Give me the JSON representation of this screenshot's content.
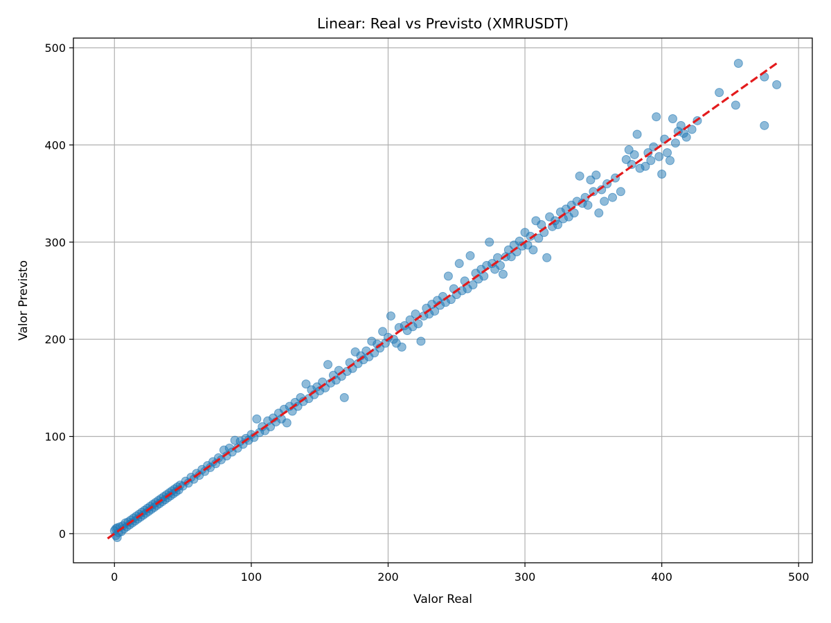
{
  "chart_data": {
    "type": "scatter",
    "title": "Linear: Real vs Previsto (XMRUSDT)",
    "xlabel": "Valor Real",
    "ylabel": "Valor Previsto",
    "xlim": [
      -30,
      510
    ],
    "ylim": [
      -30,
      510
    ],
    "xticks": [
      0,
      100,
      200,
      300,
      400,
      500
    ],
    "yticks": [
      0,
      100,
      200,
      300,
      400,
      500
    ],
    "grid": true,
    "colors": {
      "points": "#1f77b4",
      "reference_line": "#e31a1c",
      "grid": "#b0b0b0"
    },
    "reference_line": {
      "style": "dashed",
      "x": [
        -5,
        485
      ],
      "y": [
        -5,
        485
      ]
    },
    "series": [
      {
        "values_note": "",
        "points": [
          [
            0,
            3
          ],
          [
            1,
            -2
          ],
          [
            1,
            5
          ],
          [
            2,
            -4
          ],
          [
            2,
            6
          ],
          [
            3,
            1
          ],
          [
            4,
            7
          ],
          [
            5,
            2
          ],
          [
            6,
            8
          ],
          [
            7,
            5
          ],
          [
            8,
            11
          ],
          [
            9,
            7
          ],
          [
            10,
            12
          ],
          [
            11,
            9
          ],
          [
            12,
            14
          ],
          [
            13,
            11
          ],
          [
            14,
            16
          ],
          [
            15,
            13
          ],
          [
            16,
            18
          ],
          [
            17,
            15
          ],
          [
            18,
            20
          ],
          [
            19,
            17
          ],
          [
            20,
            22
          ],
          [
            21,
            19
          ],
          [
            22,
            24
          ],
          [
            23,
            21
          ],
          [
            24,
            26
          ],
          [
            25,
            23
          ],
          [
            26,
            28
          ],
          [
            27,
            25
          ],
          [
            28,
            30
          ],
          [
            29,
            27
          ],
          [
            30,
            32
          ],
          [
            31,
            29
          ],
          [
            32,
            34
          ],
          [
            33,
            31
          ],
          [
            34,
            36
          ],
          [
            35,
            33
          ],
          [
            36,
            38
          ],
          [
            37,
            35
          ],
          [
            38,
            40
          ],
          [
            39,
            37
          ],
          [
            40,
            42
          ],
          [
            41,
            39
          ],
          [
            42,
            44
          ],
          [
            43,
            41
          ],
          [
            44,
            46
          ],
          [
            45,
            43
          ],
          [
            46,
            48
          ],
          [
            47,
            45
          ],
          [
            48,
            50
          ],
          [
            50,
            49
          ],
          [
            52,
            54
          ],
          [
            54,
            52
          ],
          [
            56,
            58
          ],
          [
            58,
            56
          ],
          [
            60,
            62
          ],
          [
            62,
            60
          ],
          [
            64,
            66
          ],
          [
            66,
            64
          ],
          [
            68,
            70
          ],
          [
            70,
            68
          ],
          [
            72,
            74
          ],
          [
            74,
            72
          ],
          [
            76,
            78
          ],
          [
            78,
            76
          ],
          [
            80,
            86
          ],
          [
            82,
            80
          ],
          [
            84,
            88
          ],
          [
            86,
            84
          ],
          [
            88,
            96
          ],
          [
            90,
            88
          ],
          [
            92,
            95
          ],
          [
            94,
            92
          ],
          [
            96,
            98
          ],
          [
            98,
            96
          ],
          [
            100,
            102
          ],
          [
            102,
            99
          ],
          [
            104,
            118
          ],
          [
            106,
            104
          ],
          [
            108,
            110
          ],
          [
            110,
            106
          ],
          [
            112,
            116
          ],
          [
            114,
            110
          ],
          [
            116,
            119
          ],
          [
            118,
            115
          ],
          [
            120,
            124
          ],
          [
            122,
            118
          ],
          [
            124,
            128
          ],
          [
            126,
            114
          ],
          [
            128,
            131
          ],
          [
            130,
            126
          ],
          [
            132,
            135
          ],
          [
            134,
            131
          ],
          [
            136,
            140
          ],
          [
            138,
            136
          ],
          [
            140,
            154
          ],
          [
            142,
            139
          ],
          [
            144,
            148
          ],
          [
            146,
            143
          ],
          [
            148,
            151
          ],
          [
            150,
            147
          ],
          [
            152,
            156
          ],
          [
            154,
            150
          ],
          [
            156,
            174
          ],
          [
            158,
            155
          ],
          [
            160,
            163
          ],
          [
            162,
            158
          ],
          [
            164,
            168
          ],
          [
            166,
            162
          ],
          [
            168,
            140
          ],
          [
            170,
            167
          ],
          [
            172,
            176
          ],
          [
            174,
            170
          ],
          [
            176,
            187
          ],
          [
            178,
            175
          ],
          [
            180,
            183
          ],
          [
            182,
            179
          ],
          [
            184,
            188
          ],
          [
            186,
            182
          ],
          [
            188,
            198
          ],
          [
            190,
            186
          ],
          [
            192,
            195
          ],
          [
            194,
            191
          ],
          [
            196,
            208
          ],
          [
            198,
            196
          ],
          [
            200,
            202
          ],
          [
            202,
            224
          ],
          [
            204,
            200
          ],
          [
            206,
            196
          ],
          [
            208,
            212
          ],
          [
            210,
            192
          ],
          [
            212,
            214
          ],
          [
            214,
            209
          ],
          [
            216,
            220
          ],
          [
            218,
            213
          ],
          [
            220,
            226
          ],
          [
            222,
            216
          ],
          [
            224,
            198
          ],
          [
            226,
            224
          ],
          [
            228,
            232
          ],
          [
            230,
            226
          ],
          [
            232,
            236
          ],
          [
            234,
            229
          ],
          [
            236,
            240
          ],
          [
            238,
            235
          ],
          [
            240,
            244
          ],
          [
            242,
            238
          ],
          [
            244,
            265
          ],
          [
            246,
            241
          ],
          [
            248,
            252
          ],
          [
            250,
            246
          ],
          [
            252,
            278
          ],
          [
            254,
            250
          ],
          [
            256,
            260
          ],
          [
            258,
            252
          ],
          [
            260,
            286
          ],
          [
            262,
            256
          ],
          [
            264,
            268
          ],
          [
            266,
            262
          ],
          [
            268,
            272
          ],
          [
            270,
            265
          ],
          [
            272,
            276
          ],
          [
            274,
            300
          ],
          [
            276,
            278
          ],
          [
            278,
            272
          ],
          [
            280,
            284
          ],
          [
            282,
            276
          ],
          [
            284,
            267
          ],
          [
            286,
            285
          ],
          [
            288,
            292
          ],
          [
            290,
            285
          ],
          [
            292,
            297
          ],
          [
            294,
            290
          ],
          [
            296,
            301
          ],
          [
            298,
            296
          ],
          [
            300,
            310
          ],
          [
            302,
            297
          ],
          [
            304,
            306
          ],
          [
            306,
            292
          ],
          [
            308,
            322
          ],
          [
            310,
            304
          ],
          [
            312,
            318
          ],
          [
            314,
            310
          ],
          [
            316,
            284
          ],
          [
            318,
            326
          ],
          [
            320,
            316
          ],
          [
            322,
            322
          ],
          [
            324,
            318
          ],
          [
            326,
            331
          ],
          [
            328,
            324
          ],
          [
            330,
            334
          ],
          [
            332,
            326
          ],
          [
            334,
            338
          ],
          [
            336,
            330
          ],
          [
            338,
            342
          ],
          [
            340,
            368
          ],
          [
            342,
            340
          ],
          [
            344,
            346
          ],
          [
            346,
            338
          ],
          [
            348,
            364
          ],
          [
            350,
            352
          ],
          [
            352,
            369
          ],
          [
            354,
            330
          ],
          [
            356,
            354
          ],
          [
            358,
            342
          ],
          [
            360,
            360
          ],
          [
            364,
            346
          ],
          [
            366,
            366
          ],
          [
            370,
            352
          ],
          [
            374,
            385
          ],
          [
            376,
            395
          ],
          [
            378,
            380
          ],
          [
            380,
            390
          ],
          [
            382,
            411
          ],
          [
            384,
            376
          ],
          [
            388,
            378
          ],
          [
            390,
            392
          ],
          [
            392,
            384
          ],
          [
            394,
            398
          ],
          [
            396,
            429
          ],
          [
            398,
            388
          ],
          [
            400,
            370
          ],
          [
            402,
            406
          ],
          [
            404,
            392
          ],
          [
            406,
            384
          ],
          [
            408,
            427
          ],
          [
            410,
            402
          ],
          [
            412,
            414
          ],
          [
            414,
            420
          ],
          [
            416,
            412
          ],
          [
            418,
            408
          ],
          [
            422,
            416
          ],
          [
            426,
            425
          ],
          [
            442,
            454
          ],
          [
            454,
            441
          ],
          [
            456,
            484
          ],
          [
            475,
            470
          ],
          [
            475,
            420
          ],
          [
            484,
            462
          ]
        ]
      }
    ]
  }
}
